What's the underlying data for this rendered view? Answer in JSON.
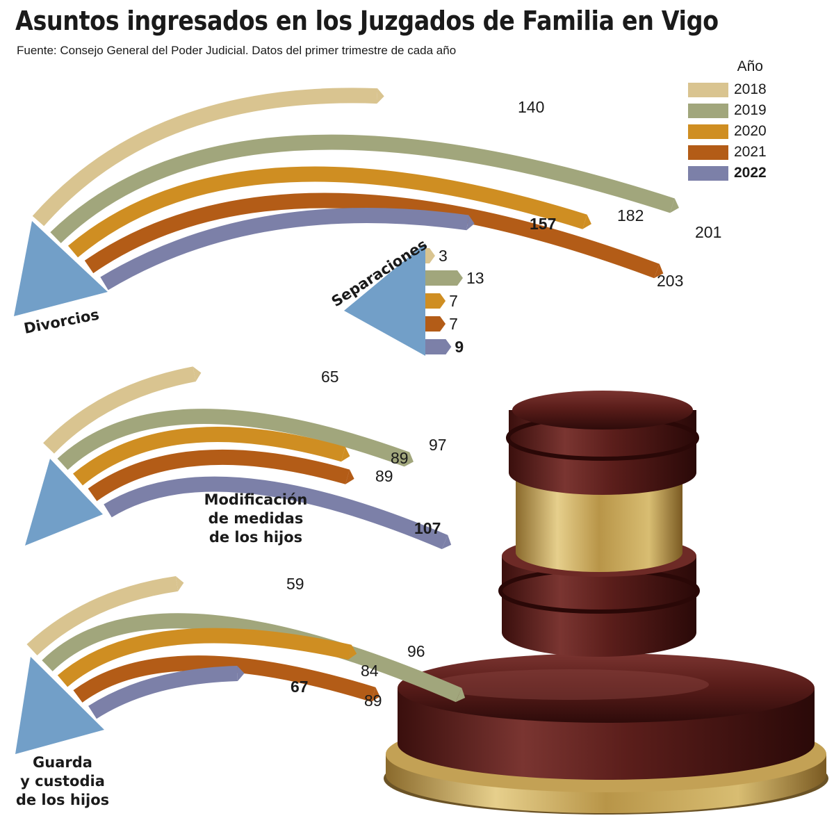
{
  "title": "Asuntos ingresados en los Juzgados de Familia en Vigo",
  "subtitle": "Fuente: Consejo General del Poder Judicial. Datos del primer trimestre de cada año",
  "legend": {
    "title": "Año",
    "items": [
      {
        "label": "2018",
        "color": "#d9c490",
        "bold": false
      },
      {
        "label": "2019",
        "color": "#a1a67c",
        "bold": false
      },
      {
        "label": "2020",
        "color": "#cf8e22",
        "bold": false
      },
      {
        "label": "2021",
        "color": "#b35c17",
        "bold": false
      },
      {
        "label": "2022",
        "color": "#7c80a8",
        "bold": true
      }
    ]
  },
  "colors": {
    "triangle": "#729fc8",
    "series": [
      "#d9c490",
      "#a1a67c",
      "#cf8e22",
      "#b35c17",
      "#7c80a8"
    ],
    "gavel_wood": "#5e1f1c",
    "gavel_gold": "#c9a85a"
  },
  "chart_data": [
    {
      "type": "bar",
      "category": "Divorcios",
      "series": [
        {
          "name": "2018",
          "value": 140
        },
        {
          "name": "2019",
          "value": 201
        },
        {
          "name": "2020",
          "value": 182
        },
        {
          "name": "2021",
          "value": 203
        },
        {
          "name": "2022",
          "value": 157
        }
      ]
    },
    {
      "type": "bar",
      "category": "Separaciones",
      "series": [
        {
          "name": "2018",
          "value": 3
        },
        {
          "name": "2019",
          "value": 13
        },
        {
          "name": "2020",
          "value": 7
        },
        {
          "name": "2021",
          "value": 7
        },
        {
          "name": "2022",
          "value": 9
        }
      ]
    },
    {
      "type": "bar",
      "category": "Modificación de medidas de los hijos",
      "series": [
        {
          "name": "2018",
          "value": 65
        },
        {
          "name": "2019",
          "value": 97
        },
        {
          "name": "2020",
          "value": 89
        },
        {
          "name": "2021",
          "value": 89
        },
        {
          "name": "2022",
          "value": 107
        }
      ]
    },
    {
      "type": "bar",
      "category": "Guarda y custodia de los hijos",
      "series": [
        {
          "name": "2018",
          "value": 59
        },
        {
          "name": "2019",
          "value": 96
        },
        {
          "name": "2020",
          "value": 84
        },
        {
          "name": "2021",
          "value": 89
        },
        {
          "name": "2022",
          "value": 67
        }
      ]
    }
  ],
  "labels": {
    "divorcios": "Divorcios",
    "separaciones": "Separaciones",
    "modificacion": [
      "Modificación",
      "de medidas",
      "de los hijos"
    ],
    "guarda": [
      "Guarda",
      "y custodia",
      "de los hijos"
    ]
  }
}
